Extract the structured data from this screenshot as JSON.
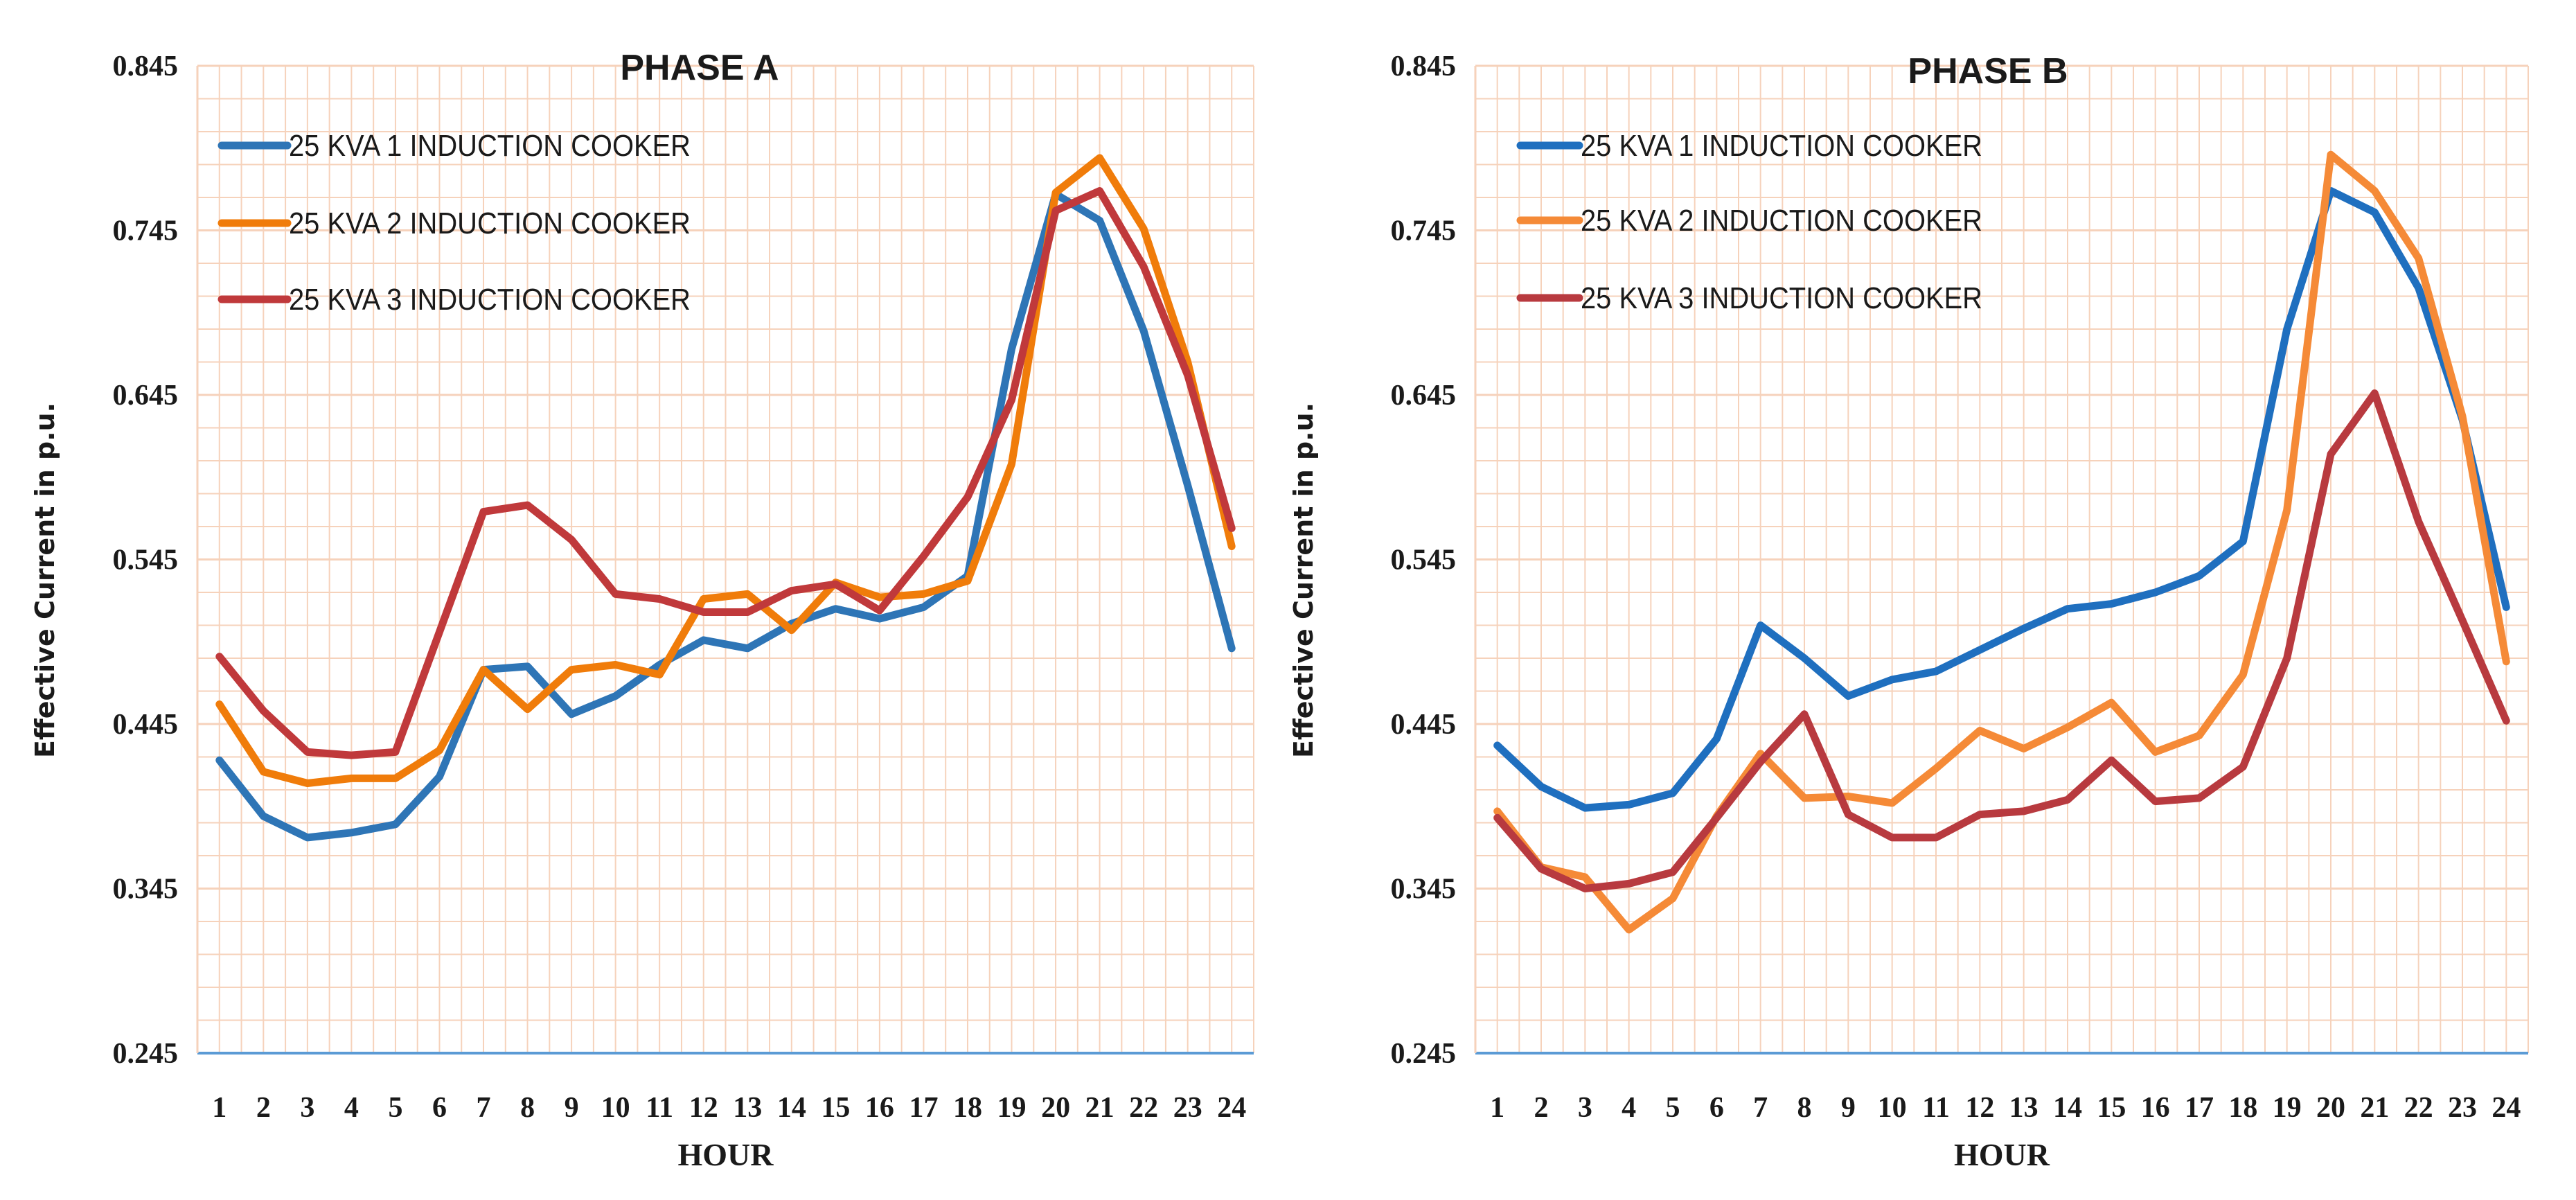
{
  "colors": {
    "grid": "#f6d2bb",
    "axis": "#5b9bd5",
    "background": "#ffffff"
  },
  "chart_data": [
    {
      "type": "line",
      "title": "PHASE A",
      "xlabel": "HOUR",
      "ylabel": "Effective Current in p.u.",
      "x": [
        1,
        2,
        3,
        4,
        5,
        6,
        7,
        8,
        9,
        10,
        11,
        12,
        13,
        14,
        15,
        16,
        17,
        18,
        19,
        20,
        21,
        22,
        23,
        24
      ],
      "ylim": [
        0.245,
        0.845
      ],
      "yticks": [
        "0.245",
        "0.345",
        "0.445",
        "0.545",
        "0.645",
        "0.745",
        "0.845"
      ],
      "legend_position": "top-left",
      "series": [
        {
          "name": "25 KVA 1 INDUCTION COOKER",
          "color": "#2e75b6",
          "values": [
            0.423,
            0.389,
            0.376,
            0.379,
            0.384,
            0.413,
            0.478,
            0.48,
            0.451,
            0.462,
            0.481,
            0.496,
            0.491,
            0.506,
            0.515,
            0.509,
            0.516,
            0.535,
            0.673,
            0.767,
            0.751,
            0.684,
            0.59,
            0.491
          ]
        },
        {
          "name": "25 KVA 2  INDUCTION COOKER",
          "color": "#f07c0a",
          "values": [
            0.457,
            0.416,
            0.409,
            0.412,
            0.412,
            0.429,
            0.478,
            0.454,
            0.478,
            0.481,
            0.475,
            0.521,
            0.524,
            0.502,
            0.531,
            0.522,
            0.524,
            0.532,
            0.603,
            0.768,
            0.789,
            0.746,
            0.665,
            0.553
          ]
        },
        {
          "name": "25 KVA 3  INDUCTION COOKER",
          "color": "#c0393b",
          "values": [
            0.486,
            0.453,
            0.428,
            0.426,
            0.428,
            0.501,
            0.574,
            0.578,
            0.557,
            0.524,
            0.521,
            0.513,
            0.513,
            0.526,
            0.53,
            0.514,
            0.547,
            0.583,
            0.642,
            0.757,
            0.769,
            0.723,
            0.657,
            0.564
          ]
        }
      ]
    },
    {
      "type": "line",
      "title": "PHASE B",
      "xlabel": "HOUR",
      "ylabel": "Effective Current in p.u.",
      "x": [
        1,
        2,
        3,
        4,
        5,
        6,
        7,
        8,
        9,
        10,
        11,
        12,
        13,
        14,
        15,
        16,
        17,
        18,
        19,
        20,
        21,
        22,
        23,
        24
      ],
      "ylim": [
        0.245,
        0.845
      ],
      "yticks": [
        "0.245",
        "0.345",
        "0.445",
        "0.545",
        "0.645",
        "0.745",
        "0.845"
      ],
      "legend_position": "top-left",
      "series": [
        {
          "name": "25 KVA 1 INDUCTION COOKER",
          "color": "#1f6fbf",
          "values": [
            0.432,
            0.407,
            0.394,
            0.396,
            0.403,
            0.436,
            0.505,
            0.485,
            0.462,
            0.472,
            0.477,
            0.49,
            0.503,
            0.515,
            0.518,
            0.525,
            0.535,
            0.556,
            0.685,
            0.769,
            0.756,
            0.71,
            0.63,
            0.516
          ]
        },
        {
          "name": "25 KVA 2  INDUCTION COOKER",
          "color": "#f58a37",
          "values": [
            0.392,
            0.358,
            0.352,
            0.32,
            0.339,
            0.389,
            0.427,
            0.4,
            0.401,
            0.397,
            0.418,
            0.441,
            0.43,
            0.443,
            0.458,
            0.428,
            0.438,
            0.475,
            0.575,
            0.791,
            0.769,
            0.728,
            0.632,
            0.483
          ]
        },
        {
          "name": "25 KVA 3  INDUCTION COOKER",
          "color": "#b83a3f",
          "values": [
            0.388,
            0.357,
            0.345,
            0.348,
            0.355,
            0.388,
            0.422,
            0.451,
            0.39,
            0.376,
            0.376,
            0.39,
            0.392,
            0.399,
            0.423,
            0.398,
            0.4,
            0.419,
            0.485,
            0.609,
            0.646,
            0.568,
            0.508,
            0.447
          ]
        }
      ]
    }
  ]
}
